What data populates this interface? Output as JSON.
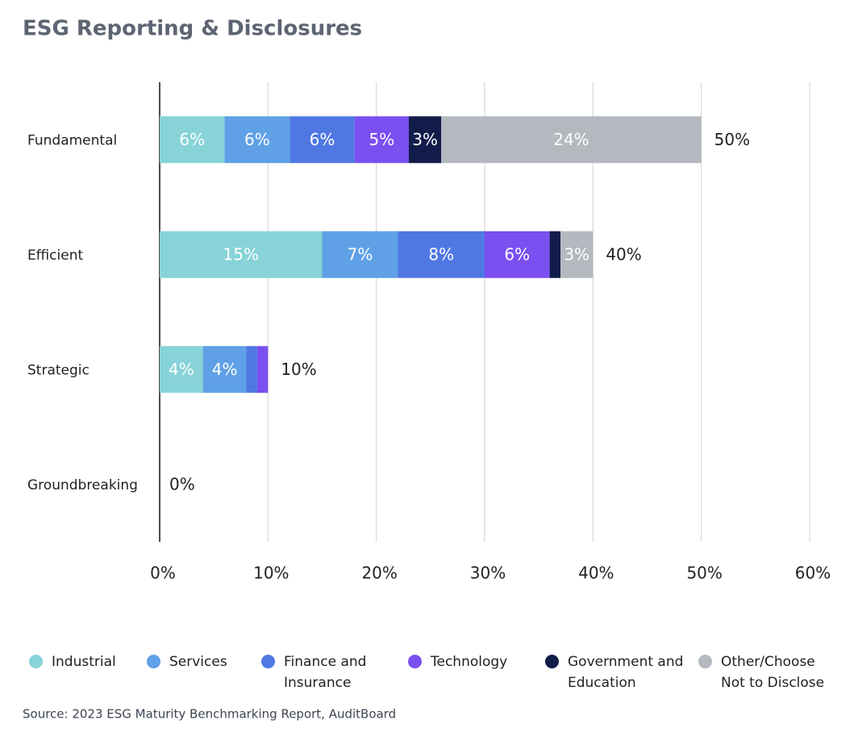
{
  "chart_data": {
    "type": "bar",
    "orientation": "horizontal",
    "stacked": true,
    "title": "ESG Reporting & Disclosures",
    "source": "Source: 2023 ESG Maturity Benchmarking Report, AuditBoard",
    "categories": [
      "Fundamental",
      "Efficient",
      "Strategic",
      "Groundbreaking"
    ],
    "series": [
      {
        "name": "Industrial",
        "color": "#87d3d8",
        "values": [
          6,
          15,
          4,
          0
        ],
        "value_labels": [
          "6%",
          "15%",
          "4%",
          null
        ]
      },
      {
        "name": "Services",
        "color": "#5fa0e6",
        "values": [
          6,
          7,
          4,
          0
        ],
        "value_labels": [
          "6%",
          "7%",
          "4%",
          null
        ]
      },
      {
        "name": "Finance and Insurance",
        "color": "#4f78e3",
        "values": [
          6,
          8,
          1,
          0
        ],
        "value_labels": [
          "6%",
          "8%",
          null,
          null
        ]
      },
      {
        "name": "Technology",
        "color": "#7b4ff0",
        "values": [
          5,
          6,
          1,
          0
        ],
        "value_labels": [
          "5%",
          "6%",
          null,
          null
        ]
      },
      {
        "name": "Government and Education",
        "color": "#111c4a",
        "values": [
          3,
          1,
          0,
          0
        ],
        "value_labels": [
          "3%",
          null,
          null,
          null
        ]
      },
      {
        "name": "Other/Choose Not to Disclose",
        "color": "#b4b8bf",
        "values": [
          24,
          3,
          0,
          0
        ],
        "value_labels": [
          "24%",
          "3%",
          null,
          null
        ]
      }
    ],
    "totals": [
      50,
      40,
      10,
      0
    ],
    "total_labels": [
      "50%",
      "40%",
      "10%",
      "0%"
    ],
    "xlim": [
      0,
      60
    ],
    "xticks": [
      {
        "value": 0,
        "label": "0%"
      },
      {
        "value": 10,
        "label": "10%"
      },
      {
        "value": 20,
        "label": "20%"
      },
      {
        "value": 30,
        "label": "30%"
      },
      {
        "value": 40,
        "label": "40%"
      },
      {
        "value": 50,
        "label": "50%"
      },
      {
        "value": 60,
        "label": "60%"
      }
    ],
    "grid": true
  }
}
